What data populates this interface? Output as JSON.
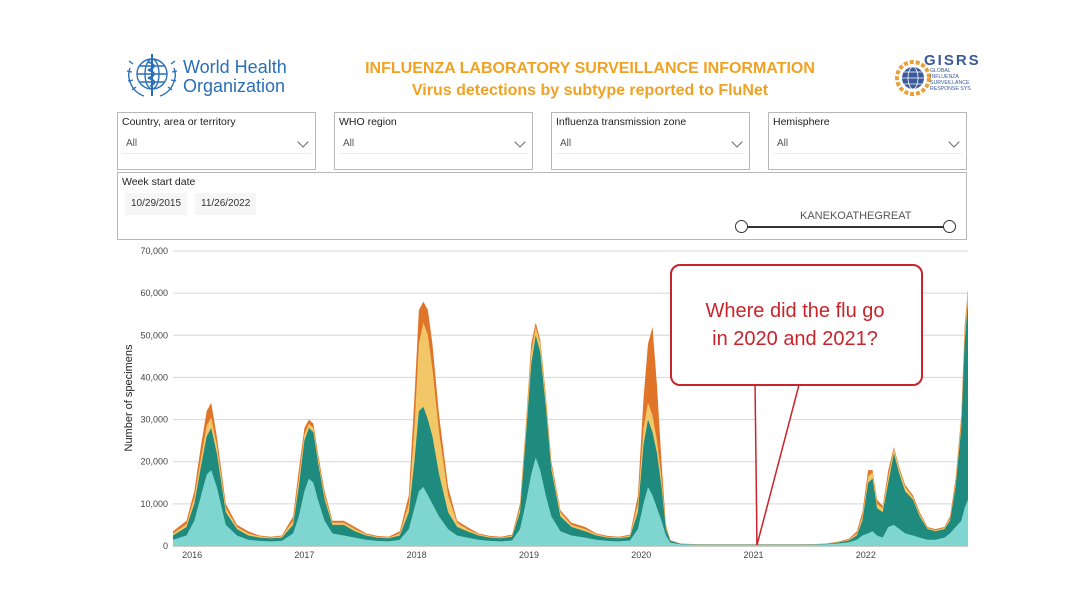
{
  "header": {
    "org_line1": "World Health",
    "org_line2": "Organization",
    "title_line1": "INFLUENZA LABORATORY SURVEILLANCE INFORMATION",
    "title_line2": "Virus detections by subtype reported to FluNet",
    "gisrs_logo": "GISRS",
    "gisrs_sub": "GLOBAL INFLUENZA SURVEILLANCE RESPONSE SYS"
  },
  "filters": [
    {
      "label": "Country, area or territory",
      "value": "All"
    },
    {
      "label": "WHO region",
      "value": "All"
    },
    {
      "label": "Influenza transmission zone",
      "value": "All"
    },
    {
      "label": "Hemisphere",
      "value": "All"
    }
  ],
  "date_filter": {
    "label": "Week start date",
    "start": "10/29/2015",
    "end": "11/26/2022",
    "watermark": "KANEKOATHEGREAT"
  },
  "callout": {
    "line1": "Where did the flu go",
    "line2": "in 2020 and 2021?"
  },
  "colors": {
    "who_blue": "#2a6fb7",
    "title_orange": "#f0a224",
    "callout_red": "#c8242b",
    "teal_dark": "#1f8a7e",
    "teal_light": "#7fd6d0",
    "orange": "#e0752a",
    "yellow": "#f2c768"
  },
  "chart_data": {
    "type": "area",
    "ylabel": "Number of specimens",
    "xlabel": "",
    "ylim": [
      0,
      70000
    ],
    "yticks": [
      "0",
      "10,000",
      "20,000",
      "30,000",
      "40,000",
      "50,000",
      "60,000",
      "70,000"
    ],
    "x_labels": [
      "2016",
      "2017",
      "2018",
      "2019",
      "2020",
      "2021",
      "2022"
    ],
    "grid": true,
    "x_unit": "year",
    "x": [
      2015.83,
      2015.95,
      2016.02,
      2016.08,
      2016.13,
      2016.17,
      2016.22,
      2016.3,
      2016.4,
      2016.5,
      2016.6,
      2016.7,
      2016.8,
      2016.9,
      2016.95,
      2017.0,
      2017.04,
      2017.08,
      2017.12,
      2017.18,
      2017.25,
      2017.35,
      2017.45,
      2017.55,
      2017.65,
      2017.75,
      2017.85,
      2017.93,
      2017.98,
      2018.02,
      2018.06,
      2018.1,
      2018.14,
      2018.2,
      2018.28,
      2018.36,
      2018.45,
      2018.55,
      2018.65,
      2018.75,
      2018.85,
      2018.92,
      2018.97,
      2019.02,
      2019.06,
      2019.1,
      2019.15,
      2019.2,
      2019.28,
      2019.38,
      2019.5,
      2019.6,
      2019.7,
      2019.8,
      2019.9,
      2019.97,
      2020.02,
      2020.06,
      2020.1,
      2020.14,
      2020.18,
      2020.22,
      2020.26,
      2020.35,
      2020.5,
      2020.7,
      2020.9,
      2021.1,
      2021.3,
      2021.5,
      2021.65,
      2021.75,
      2021.85,
      2021.92,
      2021.97,
      2022.02,
      2022.06,
      2022.1,
      2022.15,
      2022.2,
      2022.25,
      2022.3,
      2022.35,
      2022.42,
      2022.48,
      2022.55,
      2022.62,
      2022.7,
      2022.75,
      2022.8,
      2022.85,
      2022.88,
      2022.91
    ],
    "series": [
      {
        "values": [
          1500,
          2500,
          6000,
          12000,
          17000,
          18000,
          14000,
          5000,
          2500,
          1500,
          1200,
          1100,
          1200,
          3000,
          7000,
          13000,
          16000,
          15000,
          11000,
          6000,
          3000,
          2500,
          2000,
          1500,
          1200,
          1100,
          1500,
          4000,
          9000,
          13000,
          14000,
          12000,
          10000,
          7000,
          4000,
          2500,
          2000,
          1500,
          1200,
          1100,
          1300,
          4000,
          10000,
          17000,
          21000,
          18000,
          12000,
          7000,
          3500,
          2500,
          2000,
          1500,
          1200,
          1100,
          1300,
          4000,
          10000,
          14000,
          12000,
          9000,
          6000,
          2500,
          800,
          400,
          300,
          300,
          300,
          300,
          300,
          300,
          400,
          600,
          900,
          1500,
          2500,
          3000,
          3500,
          2500,
          2000,
          4500,
          5000,
          4000,
          3000,
          2500,
          2000,
          1500,
          1500,
          2000,
          3000,
          4500,
          6000,
          9000,
          11000
        ]
      },
      {
        "values": [
          2500,
          4500,
          10000,
          19000,
          26000,
          28000,
          22000,
          8000,
          4000,
          2500,
          2000,
          1800,
          2000,
          5000,
          14000,
          25000,
          28000,
          27000,
          20000,
          11000,
          5000,
          5000,
          3500,
          2500,
          2000,
          1800,
          2500,
          8000,
          20000,
          32000,
          33000,
          30000,
          26000,
          17000,
          8000,
          4500,
          3500,
          2500,
          2000,
          1800,
          2200,
          8000,
          25000,
          43000,
          50000,
          46000,
          33000,
          18000,
          7000,
          4500,
          3500,
          2500,
          2000,
          1800,
          2200,
          8000,
          24000,
          30000,
          27000,
          22000,
          14000,
          4000,
          1200,
          500,
          350,
          350,
          350,
          350,
          350,
          350,
          500,
          800,
          1300,
          2500,
          6000,
          15000,
          16000,
          9000,
          8000,
          15000,
          22000,
          17000,
          13000,
          11000,
          7000,
          4000,
          3500,
          4000,
          6000,
          14000,
          28000,
          48000,
          58000
        ]
      },
      {
        "values": [
          3000,
          5200,
          11500,
          21000,
          28500,
          30500,
          24000,
          9000,
          4500,
          3000,
          2300,
          2000,
          2300,
          6000,
          16000,
          26500,
          29000,
          28000,
          21000,
          12000,
          5500,
          5500,
          4000,
          2800,
          2200,
          2000,
          3000,
          10000,
          28000,
          48000,
          53000,
          50000,
          42000,
          27000,
          12000,
          5500,
          4000,
          2800,
          2200,
          2000,
          2500,
          9000,
          27000,
          46000,
          52000,
          48000,
          35000,
          19000,
          8000,
          5000,
          4000,
          2800,
          2200,
          2000,
          2500,
          10000,
          28000,
          34000,
          31000,
          25000,
          16000,
          4500,
          1300,
          550,
          380,
          380,
          380,
          380,
          380,
          380,
          550,
          900,
          1500,
          3000,
          7000,
          16500,
          17500,
          10000,
          9000,
          16500,
          23000,
          18000,
          14000,
          11500,
          7500,
          4300,
          3700,
          4300,
          6500,
          15000,
          29500,
          50000,
          60000
        ]
      },
      {
        "values": [
          3500,
          6000,
          13000,
          24000,
          32000,
          34000,
          26000,
          10000,
          5000,
          3500,
          2500,
          2200,
          2500,
          7000,
          18000,
          28000,
          30000,
          29000,
          22000,
          13000,
          6000,
          6000,
          4500,
          3000,
          2400,
          2200,
          3500,
          12000,
          35000,
          56000,
          58000,
          56000,
          48000,
          31000,
          14000,
          6000,
          4500,
          3000,
          2400,
          2200,
          2700,
          10000,
          28000,
          48000,
          53000,
          49000,
          36000,
          20000,
          8500,
          5500,
          4500,
          3000,
          2400,
          2200,
          2700,
          12000,
          35000,
          48000,
          52000,
          38000,
          20000,
          5000,
          1400,
          600,
          400,
          400,
          400,
          400,
          400,
          400,
          600,
          1000,
          1700,
          3500,
          8000,
          18000,
          18000,
          11000,
          9500,
          18000,
          23500,
          18500,
          14500,
          12000,
          8000,
          4500,
          4000,
          4500,
          7000,
          16000,
          31000,
          52000,
          61000
        ]
      }
    ]
  }
}
